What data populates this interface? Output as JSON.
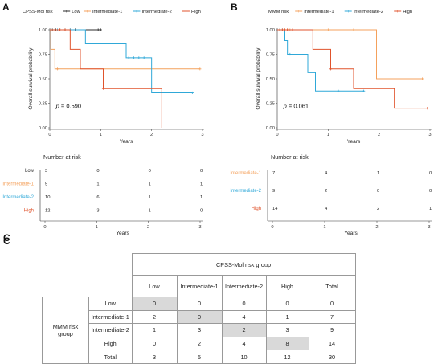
{
  "panels": {
    "A": "A",
    "B": "B",
    "C": "C"
  },
  "chart_data": [
    {
      "type": "line",
      "subtype": "kaplan-meier",
      "panel": "A",
      "legend_title": "CPSS-Mol risk",
      "legend_position": "top",
      "xlabel": "Years",
      "ylabel": "Overall survival probability",
      "xlim": [
        0,
        3
      ],
      "ylim": [
        0,
        1
      ],
      "xticks": [
        "0",
        "1",
        "2",
        "3"
      ],
      "yticks": [
        "0.00",
        "0.25",
        "0.50",
        "0.75",
        "1.00"
      ],
      "grid": false,
      "pvalue": "p = 0.590",
      "series": [
        {
          "name": "Low",
          "color": "#2b2b2b",
          "steps": [
            [
              0,
              1.0
            ],
            [
              1.0,
              1.0
            ]
          ],
          "censor": [
            [
              0.05,
              1.0
            ],
            [
              0.12,
              1.0
            ],
            [
              0.2,
              1.0
            ],
            [
              0.3,
              1.0
            ],
            [
              0.4,
              1.0
            ],
            [
              0.5,
              1.0
            ],
            [
              0.95,
              1.0
            ],
            [
              1.0,
              1.0
            ]
          ]
        },
        {
          "name": "Intermediate-1",
          "color": "#f4a15c",
          "steps": [
            [
              0,
              1.0
            ],
            [
              0.02,
              0.8
            ],
            [
              0.1,
              0.6
            ],
            [
              2.95,
              0.6
            ]
          ],
          "censor": [
            [
              0.15,
              0.6
            ],
            [
              2.95,
              0.6
            ]
          ]
        },
        {
          "name": "Intermediate-2",
          "color": "#2fa8d8",
          "steps": [
            [
              0,
              1.0
            ],
            [
              0.7,
              0.857
            ],
            [
              1.1,
              0.857
            ],
            [
              1.5,
              0.714
            ],
            [
              1.9,
              0.714
            ],
            [
              2.0,
              0.357
            ],
            [
              2.8,
              0.357
            ]
          ],
          "censor": [
            [
              0.15,
              1.0
            ],
            [
              0.4,
              1.0
            ],
            [
              1.55,
              0.714
            ],
            [
              1.65,
              0.714
            ],
            [
              1.75,
              0.714
            ],
            [
              1.85,
              0.714
            ],
            [
              2.8,
              0.357
            ]
          ]
        },
        {
          "name": "High",
          "color": "#e0532c",
          "steps": [
            [
              0,
              1.0
            ],
            [
              0.4,
              0.8
            ],
            [
              0.6,
              0.6
            ],
            [
              1.0,
              0.6
            ],
            [
              1.05,
              0.4
            ],
            [
              2.0,
              0.4
            ],
            [
              2.2,
              0.0
            ]
          ],
          "censor": [
            [
              0.1,
              1.0
            ],
            [
              0.2,
              1.0
            ],
            [
              0.3,
              1.0
            ],
            [
              1.05,
              0.4
            ]
          ]
        }
      ]
    },
    {
      "type": "line",
      "subtype": "kaplan-meier",
      "panel": "B",
      "legend_title": "MMM risk",
      "legend_position": "top",
      "xlabel": "Years",
      "ylabel": "Overall survival probability",
      "xlim": [
        0,
        3
      ],
      "ylim": [
        0,
        1
      ],
      "xticks": [
        "0",
        "1",
        "2",
        "3"
      ],
      "yticks": [
        "0.00",
        "0.25",
        "0.50",
        "0.75",
        "1.00"
      ],
      "grid": false,
      "pvalue": "p = 0.061",
      "series": [
        {
          "name": "Intermediate-1",
          "color": "#f4a15c",
          "steps": [
            [
              0,
              1.0
            ],
            [
              1.9,
              1.0
            ],
            [
              1.95,
              0.5
            ],
            [
              2.85,
              0.5
            ]
          ],
          "censor": [
            [
              0.05,
              1.0
            ],
            [
              0.1,
              1.0
            ],
            [
              0.15,
              1.0
            ],
            [
              0.2,
              1.0
            ],
            [
              0.25,
              1.0
            ],
            [
              1.0,
              1.0
            ],
            [
              1.5,
              1.0
            ],
            [
              2.85,
              0.5
            ]
          ]
        },
        {
          "name": "Intermediate-2",
          "color": "#2fa8d8",
          "steps": [
            [
              0,
              1.0
            ],
            [
              0.15,
              0.889
            ],
            [
              0.2,
              0.75
            ],
            [
              0.5,
              0.75
            ],
            [
              0.6,
              0.563
            ],
            [
              0.75,
              0.375
            ],
            [
              1.7,
              0.375
            ]
          ],
          "censor": [
            [
              0.05,
              1.0
            ],
            [
              0.1,
              1.0
            ],
            [
              0.25,
              0.75
            ],
            [
              1.2,
              0.375
            ],
            [
              1.7,
              0.375
            ]
          ]
        },
        {
          "name": "High",
          "color": "#e0532c",
          "steps": [
            [
              0,
              1.0
            ],
            [
              0.7,
              0.8
            ],
            [
              1.0,
              0.8
            ],
            [
              1.05,
              0.6
            ],
            [
              1.4,
              0.6
            ],
            [
              1.5,
              0.4
            ],
            [
              2.2,
              0.4
            ],
            [
              2.3,
              0.2
            ],
            [
              2.95,
              0.2
            ]
          ],
          "censor": [
            [
              0.05,
              1.0
            ],
            [
              0.1,
              1.0
            ],
            [
              0.15,
              1.0
            ],
            [
              0.2,
              1.0
            ],
            [
              0.3,
              1.0
            ],
            [
              1.05,
              0.6
            ],
            [
              2.95,
              0.2
            ]
          ]
        }
      ]
    }
  ],
  "risk_tables": {
    "title": "Number at risk",
    "xlabel": "Years",
    "xticks": [
      "0",
      "1",
      "2",
      "3"
    ],
    "A": {
      "rows": [
        {
          "label": "Low",
          "color": "#2b2b2b",
          "values": [
            "3",
            "0",
            "0",
            "0"
          ]
        },
        {
          "label": "Intermediate-1",
          "color": "#f4a15c",
          "values": [
            "5",
            "1",
            "1",
            "1"
          ]
        },
        {
          "label": "Intermediate-2",
          "color": "#2fa8d8",
          "values": [
            "10",
            "6",
            "1",
            "1"
          ]
        },
        {
          "label": "High",
          "color": "#e0532c",
          "values": [
            "12",
            "3",
            "1",
            "0"
          ]
        }
      ]
    },
    "B": {
      "rows": [
        {
          "label": "Intermediate-1",
          "color": "#f4a15c",
          "values": [
            "7",
            "4",
            "1",
            "0"
          ]
        },
        {
          "label": "Intermediate-2",
          "color": "#2fa8d8",
          "values": [
            "9",
            "2",
            "0",
            "0"
          ]
        },
        {
          "label": "High",
          "color": "#e0532c",
          "values": [
            "14",
            "4",
            "2",
            "1"
          ]
        }
      ]
    }
  },
  "crosstab": {
    "col_group": "CPSS-Mol risk group",
    "row_group_line1": "MMM risk",
    "row_group_line2": "group",
    "col_headers": [
      "Low",
      "Intermediate-1",
      "Intermediate-2",
      "High",
      "Total"
    ],
    "rows": [
      {
        "label": "Low",
        "cells": [
          "0",
          "0",
          "0",
          "0",
          "0"
        ],
        "grey": 0
      },
      {
        "label": "Intermediate-1",
        "cells": [
          "2",
          "0",
          "4",
          "1",
          "7"
        ],
        "grey": 1
      },
      {
        "label": "Intermediate-2",
        "cells": [
          "1",
          "3",
          "2",
          "3",
          "9"
        ],
        "grey": 2
      },
      {
        "label": "High",
        "cells": [
          "0",
          "2",
          "4",
          "8",
          "14"
        ],
        "grey": 3
      },
      {
        "label": "Total",
        "cells": [
          "3",
          "5",
          "10",
          "12",
          "30"
        ],
        "grey": -1
      }
    ]
  }
}
